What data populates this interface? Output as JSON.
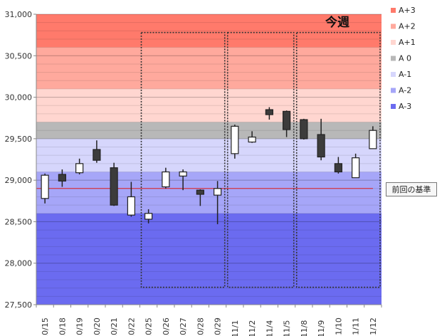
{
  "chart_data": {
    "type": "candlestick",
    "ylim": [
      27500,
      31000
    ],
    "yticks": [
      27500,
      28000,
      28500,
      29000,
      29500,
      30000,
      30500,
      31000
    ],
    "ytick_labels": [
      "27,500",
      "28,000",
      "28,500",
      "29,000",
      "29,500",
      "30,000",
      "30,500",
      "31,000"
    ],
    "categories": [
      "10/15",
      "10/18",
      "10/19",
      "10/20",
      "10/21",
      "10/22",
      "10/25",
      "10/26",
      "10/27",
      "10/28",
      "10/29",
      "11/1",
      "11/2",
      "11/4",
      "11/5",
      "11/8",
      "11/9",
      "11/10",
      "11/11",
      "11/12"
    ],
    "candles": [
      {
        "open": 28780,
        "high": 29080,
        "low": 28720,
        "close": 29060
      },
      {
        "open": 29070,
        "high": 29130,
        "low": 28920,
        "close": 28990
      },
      {
        "open": 29090,
        "high": 29260,
        "low": 29070,
        "close": 29200
      },
      {
        "open": 29370,
        "high": 29480,
        "low": 29210,
        "close": 29240
      },
      {
        "open": 29150,
        "high": 29210,
        "low": 28690,
        "close": 28700
      },
      {
        "open": 28580,
        "high": 28980,
        "low": 28560,
        "close": 28800
      },
      {
        "open": 28530,
        "high": 28650,
        "low": 28480,
        "close": 28600
      },
      {
        "open": 28920,
        "high": 29150,
        "low": 28900,
        "close": 29100
      },
      {
        "open": 29050,
        "high": 29130,
        "low": 28880,
        "close": 29100
      },
      {
        "open": 28880,
        "high": 28890,
        "low": 28690,
        "close": 28830
      },
      {
        "open": 28820,
        "high": 28990,
        "low": 28470,
        "close": 28900
      },
      {
        "open": 29320,
        "high": 29670,
        "low": 29260,
        "close": 29650
      },
      {
        "open": 29460,
        "high": 29590,
        "low": 29450,
        "close": 29520
      },
      {
        "open": 29850,
        "high": 29880,
        "low": 29730,
        "close": 29790
      },
      {
        "open": 29830,
        "high": 29840,
        "low": 29520,
        "close": 29610
      },
      {
        "open": 29730,
        "high": 29740,
        "low": 29490,
        "close": 29500
      },
      {
        "open": 29550,
        "high": 29740,
        "low": 29240,
        "close": 29280
      },
      {
        "open": 29200,
        "high": 29280,
        "low": 29080,
        "close": 29100
      },
      {
        "open": 29030,
        "high": 29320,
        "low": 29030,
        "close": 29270
      },
      {
        "open": 29380,
        "high": 29650,
        "low": 29380,
        "close": 29600
      }
    ],
    "bands": [
      {
        "name": "A+3",
        "from": 30600,
        "to": 31000,
        "color": "#ff7a6b"
      },
      {
        "name": "A+2",
        "from": 30100,
        "to": 30600,
        "color": "#ffa99d"
      },
      {
        "name": "A+1",
        "from": 29700,
        "to": 30100,
        "color": "#ffd6d0"
      },
      {
        "name": "A 0",
        "from": 29500,
        "to": 29700,
        "color": "#b8b8b8"
      },
      {
        "name": "A-1",
        "from": 29100,
        "to": 29500,
        "color": "#d6d6fc"
      },
      {
        "name": "A-2",
        "from": 28600,
        "to": 29100,
        "color": "#a6a6f8"
      },
      {
        "name": "A-3",
        "from": 27500,
        "to": 28600,
        "color": "#6b6bf0"
      }
    ],
    "reference_line": {
      "value": 28900,
      "color": "#e02020",
      "label": "前回の基準"
    },
    "week_boxes": [
      {
        "start": 6,
        "end": 10
      },
      {
        "start": 11,
        "end": 14
      },
      {
        "start": 15,
        "end": 19
      }
    ],
    "current_week_label": "今週",
    "legend_position": "right"
  }
}
